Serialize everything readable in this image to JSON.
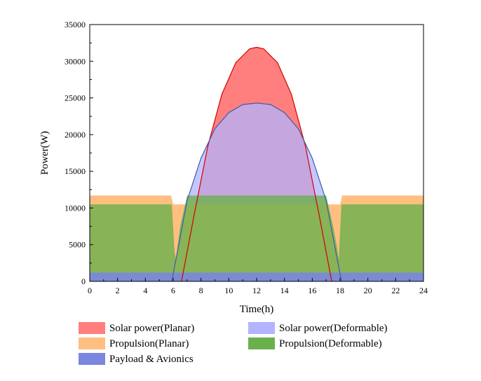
{
  "chart_data": {
    "type": "area",
    "xlabel": "Time(h)",
    "ylabel": "Power(W)",
    "xlim": [
      0,
      24
    ],
    "ylim": [
      0,
      35000
    ],
    "xticks": [
      0,
      2,
      4,
      6,
      8,
      10,
      12,
      14,
      16,
      18,
      20,
      22,
      24
    ],
    "yticks": [
      0,
      5000,
      10000,
      15000,
      20000,
      25000,
      30000,
      35000
    ],
    "grid": false,
    "legend_position": "bottom",
    "series": [
      {
        "name": "Solar power(Planar)",
        "color": "#ff7f7f",
        "line_color": "#d40000",
        "x": [
          6.6,
          7.5,
          8.5,
          9.5,
          10.5,
          11.5,
          12.0,
          12.5,
          13.5,
          14.5,
          15.5,
          16.5,
          17.4
        ],
        "y": [
          0,
          9000,
          18500,
          25500,
          29800,
          31700,
          31900,
          31700,
          29800,
          25500,
          18500,
          9000,
          0
        ]
      },
      {
        "name": "Solar power(Deformable)",
        "color": "#b3b3ff",
        "line_color": "#3e5ca8",
        "x": [
          5.9,
          7.0,
          8.0,
          9.0,
          10.0,
          11.0,
          12.0,
          13.0,
          14.0,
          15.0,
          16.0,
          17.0,
          18.1
        ],
        "y": [
          0,
          11000,
          16800,
          20800,
          23000,
          24100,
          24300,
          24100,
          23000,
          20800,
          16800,
          11000,
          0
        ]
      },
      {
        "name": "Propulsion(Planar)",
        "color": "#ffbf80",
        "x": [
          0,
          5.85,
          6.0,
          6.5,
          7.0,
          8.0,
          12.0,
          16.0,
          17.0,
          17.5,
          18.0,
          18.15,
          24
        ],
        "y": [
          11700,
          11700,
          10500,
          10500,
          10500,
          10500,
          10500,
          10500,
          10500,
          10500,
          10500,
          11700,
          11700
        ]
      },
      {
        "name": "Propulsion(Deformable)",
        "color": "#6ab04c",
        "x": [
          0,
          5.9,
          6.1,
          6.2,
          6.5,
          7.0,
          8.0,
          12.0,
          16.0,
          17.0,
          17.5,
          17.8,
          17.9,
          18.1,
          24
        ],
        "y": [
          10500,
          10500,
          4000,
          3000,
          7500,
          11700,
          11700,
          11700,
          11700,
          11700,
          7500,
          4500,
          3000,
          10500,
          10500
        ]
      },
      {
        "name": "Payload & Avionics",
        "color": "#7a86e0",
        "x": [
          0,
          24
        ],
        "y": [
          1200,
          1200
        ]
      }
    ]
  }
}
